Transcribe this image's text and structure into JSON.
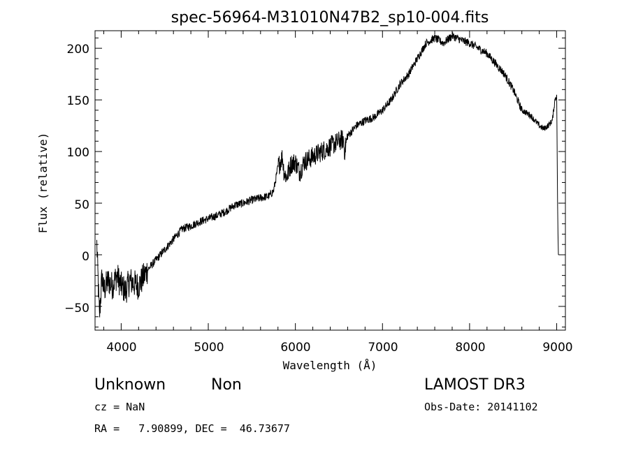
{
  "chart_data": {
    "type": "line",
    "title": "spec-56964-M31010N47B2_sp10-004.fits",
    "xlabel": "Wavelength (Å)",
    "ylabel": "Flux (relative)",
    "xlim": [
      3700,
      9100
    ],
    "ylim": [
      -73,
      217
    ],
    "xticks": [
      4000,
      5000,
      6000,
      7000,
      8000,
      9000
    ],
    "xtick_labels": [
      "4000",
      "5000",
      "6000",
      "7000",
      "8000",
      "9000"
    ],
    "yticks": [
      -50,
      0,
      50,
      100,
      150,
      200
    ],
    "ytick_labels": [
      "−50",
      "0",
      "50",
      "100",
      "150",
      "200"
    ],
    "series": [
      {
        "name": "flux",
        "x": [
          3720,
          3750,
          3780,
          3800,
          3850,
          3900,
          3950,
          4000,
          4050,
          4100,
          4150,
          4200,
          4300,
          4400,
          4500,
          4600,
          4700,
          4800,
          4900,
          5000,
          5100,
          5200,
          5300,
          5400,
          5500,
          5600,
          5700,
          5750,
          5800,
          5850,
          5870,
          5900,
          5950,
          6000,
          6050,
          6100,
          6200,
          6300,
          6400,
          6500,
          6550,
          6563,
          6600,
          6700,
          6800,
          6900,
          7000,
          7100,
          7200,
          7300,
          7400,
          7500,
          7600,
          7700,
          7800,
          7900,
          8000,
          8100,
          8200,
          8300,
          8400,
          8500,
          8600,
          8700,
          8800,
          8850,
          8900,
          8950,
          8980,
          9000,
          9010,
          9015,
          9020
        ],
        "values": [
          10,
          -60,
          -20,
          -35,
          -25,
          -30,
          -20,
          -30,
          -35,
          -25,
          -28,
          -30,
          -15,
          -5,
          5,
          15,
          25,
          28,
          32,
          35,
          38,
          42,
          48,
          50,
          53,
          55,
          57,
          62,
          85,
          95,
          80,
          75,
          88,
          90,
          80,
          90,
          95,
          100,
          105,
          110,
          112,
          100,
          115,
          125,
          130,
          133,
          140,
          150,
          165,
          175,
          190,
          205,
          210,
          205,
          212,
          208,
          205,
          200,
          195,
          185,
          175,
          160,
          140,
          135,
          125,
          122,
          125,
          130,
          150,
          155,
          50,
          20,
          0
        ]
      }
    ],
    "annotations": {
      "object_class": "Unknown",
      "object_subclass": "Non",
      "survey": "LAMOST DR3",
      "cz": "cz = NaN",
      "obs_date": "Obs-Date: 20141102",
      "coords": "RA =   7.90899, DEC =  46.73677"
    }
  }
}
